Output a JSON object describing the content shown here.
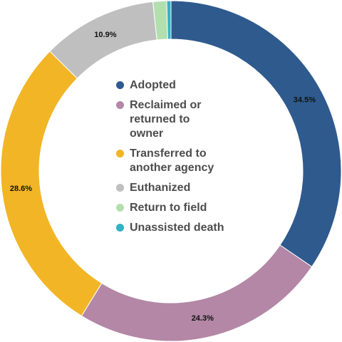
{
  "chart_data": {
    "type": "pie",
    "variant": "donut",
    "categories": [
      "Adopted",
      "Reclaimed or returned to owner",
      "Transferred to another agency",
      "Euthanized",
      "Return to field",
      "Unassisted death"
    ],
    "values": [
      34.5,
      24.3,
      28.6,
      10.9,
      1.3,
      0.4
    ],
    "data_labels": [
      "34.5%",
      "24.3%",
      "28.6%",
      "10.9%",
      "",
      ""
    ],
    "colors": [
      "#2e5a8e",
      "#b387a5",
      "#f2b526",
      "#bfbfbf",
      "#b3dfae",
      "#33b3c4"
    ],
    "legend_position": "center",
    "start_angle": "top, clockwise"
  },
  "legend": {
    "items": [
      {
        "label": "Adopted",
        "color": "#2e5a8e"
      },
      {
        "label": "Reclaimed or returned to owner",
        "color": "#b387a5"
      },
      {
        "label": "Transferred to another agency",
        "color": "#f2b526"
      },
      {
        "label": "Euthanized",
        "color": "#bfbfbf"
      },
      {
        "label": "Return to field",
        "color": "#b3dfae"
      },
      {
        "label": "Unassisted death",
        "color": "#33b3c4"
      }
    ]
  }
}
